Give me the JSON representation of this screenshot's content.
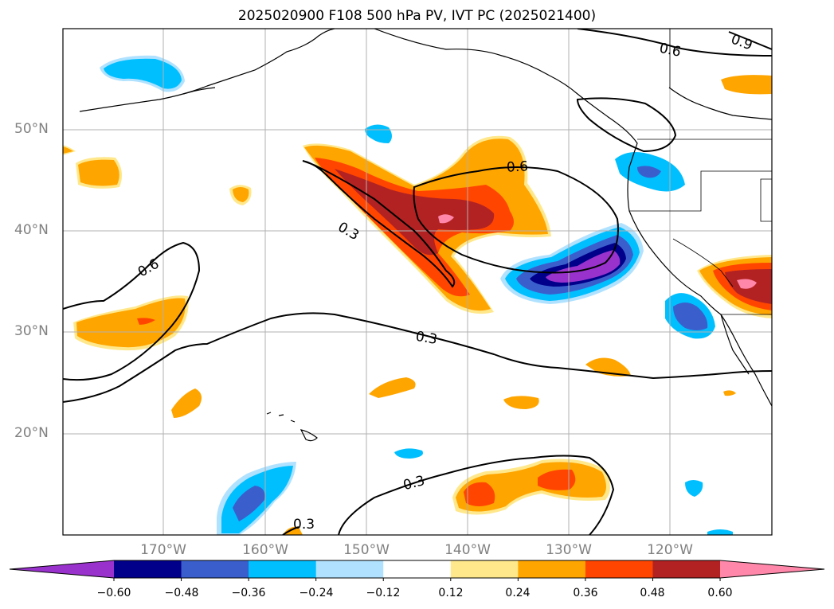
{
  "title": "2025020900 F108 500 hPa PV, IVT PC (2025021400)",
  "lat_labels": [
    "50°N",
    "40°N",
    "30°N",
    "20°N"
  ],
  "lon_labels": [
    "170°W",
    "160°W",
    "150°W",
    "140°W",
    "130°W",
    "120°W"
  ],
  "contour_labels": [
    "0.6",
    "0.9",
    "0.6",
    "0.3",
    "0.6",
    "0.3",
    "0.3",
    "0.3"
  ],
  "colorbar": {
    "ticks": [
      "−0.60",
      "−0.48",
      "−0.36",
      "−0.24",
      "−0.12",
      "0.12",
      "0.24",
      "0.36",
      "0.48",
      "0.60"
    ],
    "colors": [
      "#9932cc",
      "#00008b",
      "#3a5fcd",
      "#00bfff",
      "#b0e2ff",
      "#ffffff",
      "#ffe88c",
      "#ffa500",
      "#ff4500",
      "#b22222",
      "#ff88aa"
    ]
  }
}
